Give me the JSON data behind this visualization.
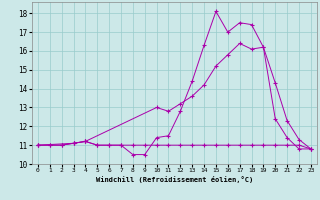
{
  "xlabel": "Windchill (Refroidissement éolien,°C)",
  "xlim": [
    -0.5,
    23.5
  ],
  "ylim": [
    10,
    18.6
  ],
  "yticks": [
    10,
    11,
    12,
    13,
    14,
    15,
    16,
    17,
    18
  ],
  "xticks": [
    0,
    1,
    2,
    3,
    4,
    5,
    6,
    7,
    8,
    9,
    10,
    11,
    12,
    13,
    14,
    15,
    16,
    17,
    18,
    19,
    20,
    21,
    22,
    23
  ],
  "bg_color": "#cce8e8",
  "line_color": "#aa00aa",
  "lines": [
    {
      "x": [
        0,
        1,
        2,
        3,
        4,
        5,
        6,
        7,
        8,
        9,
        10,
        11,
        12,
        13,
        14,
        15,
        16,
        17,
        18,
        19,
        20,
        21,
        22,
        23
      ],
      "y": [
        11.0,
        11.0,
        11.0,
        11.1,
        11.2,
        11.0,
        11.0,
        11.0,
        10.5,
        10.5,
        11.4,
        11.5,
        12.8,
        14.4,
        16.3,
        18.1,
        17.0,
        17.5,
        17.4,
        16.2,
        12.4,
        11.4,
        10.8,
        10.8
      ]
    },
    {
      "x": [
        0,
        1,
        2,
        3,
        4,
        5,
        6,
        7,
        8,
        9,
        10,
        11,
        12,
        13,
        14,
        15,
        16,
        17,
        18,
        19,
        20,
        21,
        22,
        23
      ],
      "y": [
        11.0,
        11.0,
        11.0,
        11.1,
        11.2,
        11.0,
        11.0,
        11.0,
        11.0,
        11.0,
        11.0,
        11.0,
        11.0,
        11.0,
        11.0,
        11.0,
        11.0,
        11.0,
        11.0,
        11.0,
        11.0,
        11.0,
        11.0,
        10.8
      ]
    },
    {
      "x": [
        0,
        3,
        4,
        10,
        11,
        12,
        13,
        14,
        15,
        16,
        17,
        18,
        19,
        20,
        21,
        22,
        23
      ],
      "y": [
        11.0,
        11.1,
        11.2,
        13.0,
        12.8,
        13.2,
        13.6,
        14.2,
        15.2,
        15.8,
        16.4,
        16.1,
        16.2,
        14.3,
        12.3,
        11.3,
        10.8
      ]
    }
  ]
}
